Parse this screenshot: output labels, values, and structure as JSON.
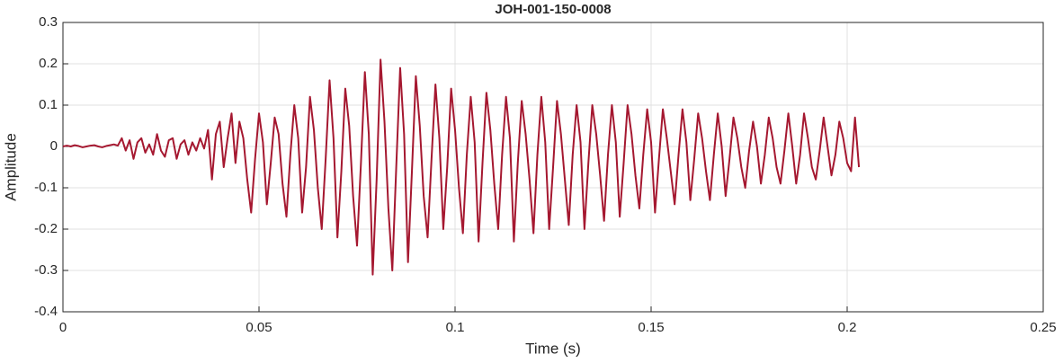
{
  "chart_data": {
    "type": "line",
    "title": "JOH-001-150-0008",
    "xlabel": "Time (s)",
    "ylabel": "Amplitude",
    "xlim": [
      0,
      0.25
    ],
    "xticks": [
      0,
      0.05,
      0.1,
      0.15,
      0.2,
      0.25
    ],
    "ylim": [
      -0.4,
      0.3
    ],
    "yticks": [
      -0.4,
      -0.3,
      -0.2,
      -0.1,
      0,
      0.1,
      0.2,
      0.3
    ],
    "grid": true,
    "x": [
      0,
      0.001,
      0.002,
      0.003,
      0.004,
      0.005,
      0.006,
      0.007,
      0.008,
      0.009,
      0.01,
      0.011,
      0.012,
      0.013,
      0.014,
      0.015,
      0.016,
      0.017,
      0.018,
      0.019,
      0.02,
      0.021,
      0.022,
      0.023,
      0.024,
      0.025,
      0.026,
      0.027,
      0.028,
      0.029,
      0.03,
      0.031,
      0.032,
      0.033,
      0.034,
      0.035,
      0.036,
      0.037,
      0.038,
      0.039,
      0.04,
      0.041,
      0.042,
      0.043,
      0.044,
      0.045,
      0.046,
      0.047,
      0.048,
      0.049,
      0.05,
      0.051,
      0.052,
      0.053,
      0.054,
      0.055,
      0.056,
      0.057,
      0.058,
      0.059,
      0.06,
      0.061,
      0.062,
      0.063,
      0.064,
      0.065,
      0.066,
      0.067,
      0.068,
      0.069,
      0.07,
      0.071,
      0.072,
      0.073,
      0.074,
      0.075,
      0.076,
      0.077,
      0.078,
      0.079,
      0.08,
      0.081,
      0.082,
      0.083,
      0.084,
      0.085,
      0.086,
      0.087,
      0.088,
      0.089,
      0.09,
      0.091,
      0.092,
      0.093,
      0.094,
      0.095,
      0.096,
      0.097,
      0.098,
      0.099,
      0.1,
      0.101,
      0.102,
      0.103,
      0.104,
      0.105,
      0.106,
      0.107,
      0.108,
      0.109,
      0.11,
      0.111,
      0.112,
      0.113,
      0.114,
      0.115,
      0.116,
      0.117,
      0.118,
      0.119,
      0.12,
      0.121,
      0.122,
      0.123,
      0.124,
      0.125,
      0.126,
      0.127,
      0.128,
      0.129,
      0.13,
      0.131,
      0.132,
      0.133,
      0.134,
      0.135,
      0.136,
      0.137,
      0.138,
      0.139,
      0.14,
      0.141,
      0.142,
      0.143,
      0.144,
      0.145,
      0.146,
      0.147,
      0.148,
      0.149,
      0.15,
      0.151,
      0.152,
      0.153,
      0.154,
      0.155,
      0.156,
      0.157,
      0.158,
      0.159,
      0.16,
      0.161,
      0.162,
      0.163,
      0.164,
      0.165,
      0.166,
      0.167,
      0.168,
      0.169,
      0.17,
      0.171,
      0.172,
      0.173,
      0.174,
      0.175,
      0.176,
      0.177,
      0.178,
      0.179,
      0.18,
      0.181,
      0.182,
      0.183,
      0.184,
      0.185,
      0.186,
      0.187,
      0.188,
      0.189,
      0.19,
      0.191,
      0.192,
      0.193,
      0.194,
      0.195,
      0.196,
      0.197,
      0.198,
      0.199,
      0.2,
      0.201,
      0.202,
      0.203
    ],
    "series": [
      {
        "name": "Amplitude",
        "color": "#a51830",
        "values": [
          0,
          0.002,
          0,
          0.003,
          0.001,
          -0.002,
          0,
          0.002,
          0.003,
          0,
          -0.002,
          0.001,
          0.003,
          0.005,
          0.002,
          0.02,
          -0.01,
          0.015,
          -0.03,
          0.01,
          0.02,
          -0.015,
          0.005,
          -0.02,
          0.03,
          -0.01,
          -0.025,
          0.015,
          0.02,
          -0.03,
          0.005,
          0.015,
          -0.02,
          0.01,
          -0.01,
          0.02,
          -0.005,
          0.04,
          -0.08,
          0.03,
          0.06,
          -0.05,
          0.02,
          0.08,
          -0.04,
          0.06,
          0.02,
          -0.08,
          -0.16,
          -0.03,
          0.08,
          0.01,
          -0.14,
          -0.04,
          0.07,
          0.03,
          -0.09,
          -0.17,
          -0.02,
          0.1,
          0.02,
          -0.16,
          -0.05,
          0.12,
          0.04,
          -0.1,
          -0.2,
          -0.03,
          0.16,
          0.02,
          -0.22,
          -0.06,
          0.14,
          0.05,
          -0.12,
          -0.24,
          -0.04,
          0.18,
          0.03,
          -0.31,
          -0.08,
          0.21,
          0.06,
          -0.15,
          -0.3,
          -0.05,
          0.19,
          0.03,
          -0.28,
          -0.06,
          0.17,
          0.05,
          -0.12,
          -0.22,
          -0.03,
          0.15,
          0.02,
          -0.2,
          -0.05,
          0.14,
          0.04,
          -0.1,
          -0.21,
          -0.02,
          0.12,
          0.01,
          -0.23,
          -0.04,
          0.13,
          0.04,
          -0.09,
          -0.2,
          -0.02,
          0.12,
          0.02,
          -0.23,
          -0.04,
          0.11,
          0.03,
          -0.08,
          -0.21,
          -0.02,
          0.12,
          0.01,
          -0.2,
          -0.05,
          0.11,
          0.03,
          -0.08,
          -0.19,
          -0.02,
          0.1,
          0.01,
          -0.2,
          -0.04,
          0.1,
          0.03,
          -0.07,
          -0.18,
          -0.02,
          0.1,
          0.01,
          -0.17,
          -0.04,
          0.1,
          0.03,
          -0.07,
          -0.15,
          -0.02,
          0.09,
          0.01,
          -0.16,
          -0.03,
          0.09,
          0.02,
          -0.06,
          -0.14,
          -0.02,
          0.09,
          0.01,
          -0.13,
          -0.03,
          0.08,
          0.02,
          -0.06,
          -0.13,
          -0.02,
          0.08,
          0,
          -0.12,
          -0.03,
          0.07,
          0.02,
          -0.05,
          -0.1,
          -0.01,
          0.06,
          0,
          -0.09,
          -0.02,
          0.07,
          0.02,
          -0.05,
          -0.09,
          -0.01,
          0.08,
          0,
          -0.09,
          -0.02,
          0.08,
          0.02,
          -0.05,
          -0.08,
          -0.01,
          0.07,
          0,
          -0.07,
          -0.02,
          0.06,
          0.02,
          -0.04,
          -0.06,
          0.07,
          -0.05
        ]
      }
    ]
  }
}
